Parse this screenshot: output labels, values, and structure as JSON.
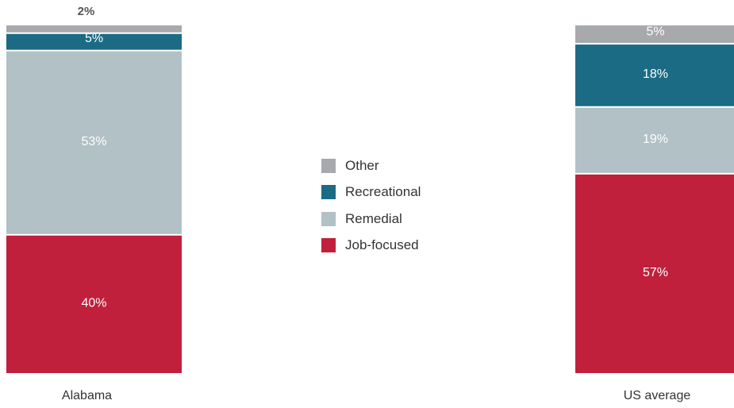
{
  "chart_data": {
    "type": "bar",
    "stacked": true,
    "normalized_to_percent": true,
    "categories": [
      "Alabama",
      "US average"
    ],
    "series": [
      {
        "name": "Job-focused",
        "values": [
          40,
          57
        ],
        "labels": [
          "40%",
          "57%"
        ],
        "color": "#c0203b"
      },
      {
        "name": "Remedial",
        "values": [
          53,
          19
        ],
        "labels": [
          "53%",
          "19%"
        ],
        "color": "#b2c1c5"
      },
      {
        "name": "Recreational",
        "values": [
          5,
          18
        ],
        "labels": [
          "5%",
          "18%"
        ],
        "color": "#1b6b85"
      },
      {
        "name": "Other",
        "values": [
          2,
          5
        ],
        "labels": [
          "2%",
          "5%"
        ],
        "color": "#a7a9ac"
      }
    ],
    "legend": {
      "placement": "center",
      "entries": [
        "Other",
        "Recreational",
        "Remedial",
        "Job-focused"
      ]
    },
    "grid": false,
    "ylim": [
      0,
      100
    ]
  }
}
